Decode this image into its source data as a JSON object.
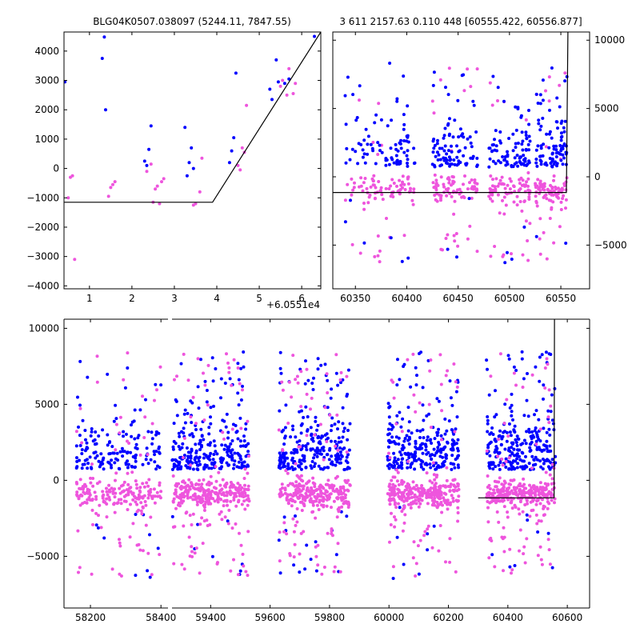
{
  "chart_data": [
    {
      "panel": "top-left",
      "type": "scatter",
      "title": "BLG04K0507.038097 (5244.11, 7847.55)",
      "x_offset_label": "+6.0551e4",
      "xlim": [
        0.4,
        6.45
      ],
      "ylim": [
        -4100,
        4650
      ],
      "xticks": [
        1,
        2,
        3,
        4,
        5,
        6
      ],
      "yticks": [
        -4000,
        -3000,
        -2000,
        -1000,
        0,
        1000,
        2000,
        3000,
        4000
      ],
      "colors": {
        "blue": "#0000ff",
        "pink": "#ee55dd"
      },
      "series": [
        {
          "color": "blue",
          "points": [
            [
              0.42,
              2950
            ],
            [
              1.35,
              4480
            ],
            [
              1.3,
              3750
            ],
            [
              1.38,
              2000
            ],
            [
              2.3,
              250
            ],
            [
              2.35,
              100
            ],
            [
              2.4,
              650
            ],
            [
              2.45,
              1450
            ],
            [
              3.25,
              1400
            ],
            [
              3.3,
              -250
            ],
            [
              3.35,
              200
            ],
            [
              3.4,
              700
            ],
            [
              3.45,
              0
            ],
            [
              4.3,
              200
            ],
            [
              4.35,
              600
            ],
            [
              4.45,
              3250
            ],
            [
              4.4,
              1050
            ],
            [
              5.25,
              2700
            ],
            [
              5.3,
              2350
            ],
            [
              5.4,
              3700
            ],
            [
              5.45,
              2950
            ],
            [
              5.6,
              2900
            ],
            [
              5.7,
              3050
            ],
            [
              6.3,
              4500
            ]
          ]
        },
        {
          "color": "pink",
          "points": [
            [
              0.5,
              -1000
            ],
            [
              0.55,
              -300
            ],
            [
              0.6,
              -250
            ],
            [
              0.65,
              -3100
            ],
            [
              1.45,
              -950
            ],
            [
              1.5,
              -650
            ],
            [
              1.55,
              -550
            ],
            [
              1.6,
              -450
            ],
            [
              2.35,
              -100
            ],
            [
              2.45,
              150
            ],
            [
              2.5,
              -1150
            ],
            [
              2.55,
              -700
            ],
            [
              2.6,
              -600
            ],
            [
              2.65,
              -1200
            ],
            [
              2.7,
              -450
            ],
            [
              2.75,
              -350
            ],
            [
              3.45,
              -1250
            ],
            [
              3.5,
              -1200
            ],
            [
              3.6,
              -800
            ],
            [
              3.65,
              350
            ],
            [
              4.5,
              100
            ],
            [
              4.55,
              -50
            ],
            [
              4.6,
              700
            ],
            [
              4.65,
              550
            ],
            [
              4.7,
              2150
            ],
            [
              5.5,
              2800
            ],
            [
              5.55,
              3000
            ],
            [
              5.65,
              2500
            ],
            [
              5.7,
              3400
            ],
            [
              5.8,
              2550
            ],
            [
              5.85,
              2900
            ]
          ]
        }
      ],
      "model_line": [
        [
          0.4,
          -1150
        ],
        [
          3.9,
          -1150
        ],
        [
          6.45,
          4650
        ]
      ]
    },
    {
      "panel": "top-right",
      "type": "scatter",
      "title": "3 611 2157.63 0.110 448 [60555.422, 60556.877]",
      "xlim": [
        60328,
        60578
      ],
      "ylim": [
        -8200,
        10600
      ],
      "xticks": [
        60350,
        60400,
        60450,
        60500,
        60550
      ],
      "yticks": [
        -5000,
        0,
        5000,
        10000
      ],
      "yaxis_side": "right",
      "colors": {
        "blue": "#0000ff",
        "pink": "#ee55dd"
      },
      "model_line": [
        [
          60328,
          -1150
        ],
        [
          60555.4,
          -1150
        ],
        [
          60556.9,
          10600
        ]
      ]
    },
    {
      "panel": "bottom",
      "type": "scatter",
      "xlim": [
        58125,
        60675
      ],
      "ylim": [
        -8400,
        10600
      ],
      "xticks": [
        58200,
        58400,
        59400,
        59600,
        59800,
        60000,
        60200,
        60400,
        60600
      ],
      "yticks": [
        -5000,
        0,
        5000,
        10000
      ],
      "axis_break": "between 58400 and 59400",
      "colors": {
        "blue": "#0000ff",
        "pink": "#ee55dd"
      },
      "seasons": [
        [
          58160,
          58400
        ],
        [
          59270,
          59530
        ],
        [
          59630,
          59870
        ],
        [
          59995,
          60235
        ],
        [
          60328,
          60560
        ]
      ],
      "model_line": [
        [
          60300,
          -1150
        ],
        [
          60555.4,
          -1150
        ],
        [
          60556.9,
          10600
        ]
      ]
    }
  ]
}
